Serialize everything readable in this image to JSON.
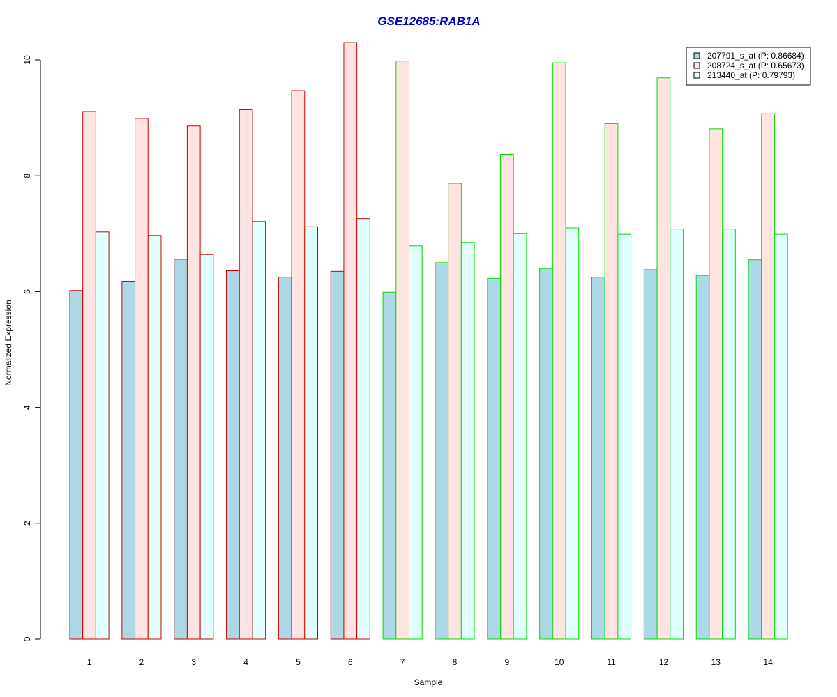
{
  "chart_data": {
    "type": "bar",
    "title": "GSE12685:RAB1A",
    "xlabel": "Sample",
    "ylabel": "Normalized Expression",
    "ylim": [
      0,
      10.5
    ],
    "yticks": [
      "0",
      "2",
      "4",
      "6",
      "8",
      "10"
    ],
    "categories": [
      "1",
      "2",
      "3",
      "4",
      "5",
      "6",
      "7",
      "8",
      "9",
      "10",
      "11",
      "12",
      "13",
      "14"
    ],
    "series": [
      {
        "name": "207791_s_at (P: 0.86684)",
        "fill": "#add8e6",
        "values": [
          6.02,
          6.18,
          6.56,
          6.36,
          6.25,
          6.35,
          5.99,
          6.5,
          6.23,
          6.4,
          6.25,
          6.38,
          6.28,
          6.55
        ]
      },
      {
        "name": "208724_s_at (P: 0.65673)",
        "fill": "#ffe4e1",
        "values": [
          9.11,
          8.99,
          8.86,
          9.14,
          9.47,
          10.3,
          9.98,
          7.87,
          8.37,
          9.95,
          8.9,
          9.69,
          8.81,
          9.07
        ]
      },
      {
        "name": "213440_at (P: 0.79793)",
        "fill": "#e0ffff",
        "values": [
          7.03,
          6.97,
          6.64,
          7.21,
          7.12,
          7.26,
          6.79,
          6.85,
          7.0,
          7.1,
          6.99,
          7.08,
          7.08,
          6.99
        ]
      }
    ],
    "group_border_colors": [
      "#cc0000",
      "#cc0000",
      "#cc0000",
      "#cc0000",
      "#cc0000",
      "#cc0000",
      "#00dd00",
      "#00dd00",
      "#00dd00",
      "#00dd00",
      "#00dd00",
      "#00dd00",
      "#00dd00",
      "#00dd00"
    ],
    "title_color": "#0000cc",
    "legend_position": "top-right",
    "grid": false
  }
}
